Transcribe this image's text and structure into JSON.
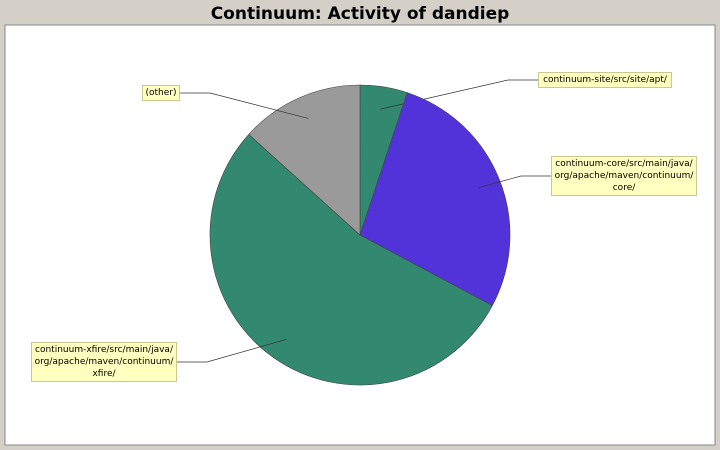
{
  "chart_data": {
    "type": "pie",
    "title": "Continuum: Activity of dandiep",
    "categories": [
      "continuum-site/src/site/apt/",
      "continuum-core/src/main/java/org/apache/maven/continuum/core/",
      "continuum-xfire/src/main/java/org/apache/maven/continuum/xfire/",
      "(other)"
    ],
    "values": [
      5.1,
      27.7,
      53.9,
      13.3
    ],
    "colors": [
      "#338870",
      "#5233d9",
      "#338870",
      "#9a9a9a"
    ]
  }
}
